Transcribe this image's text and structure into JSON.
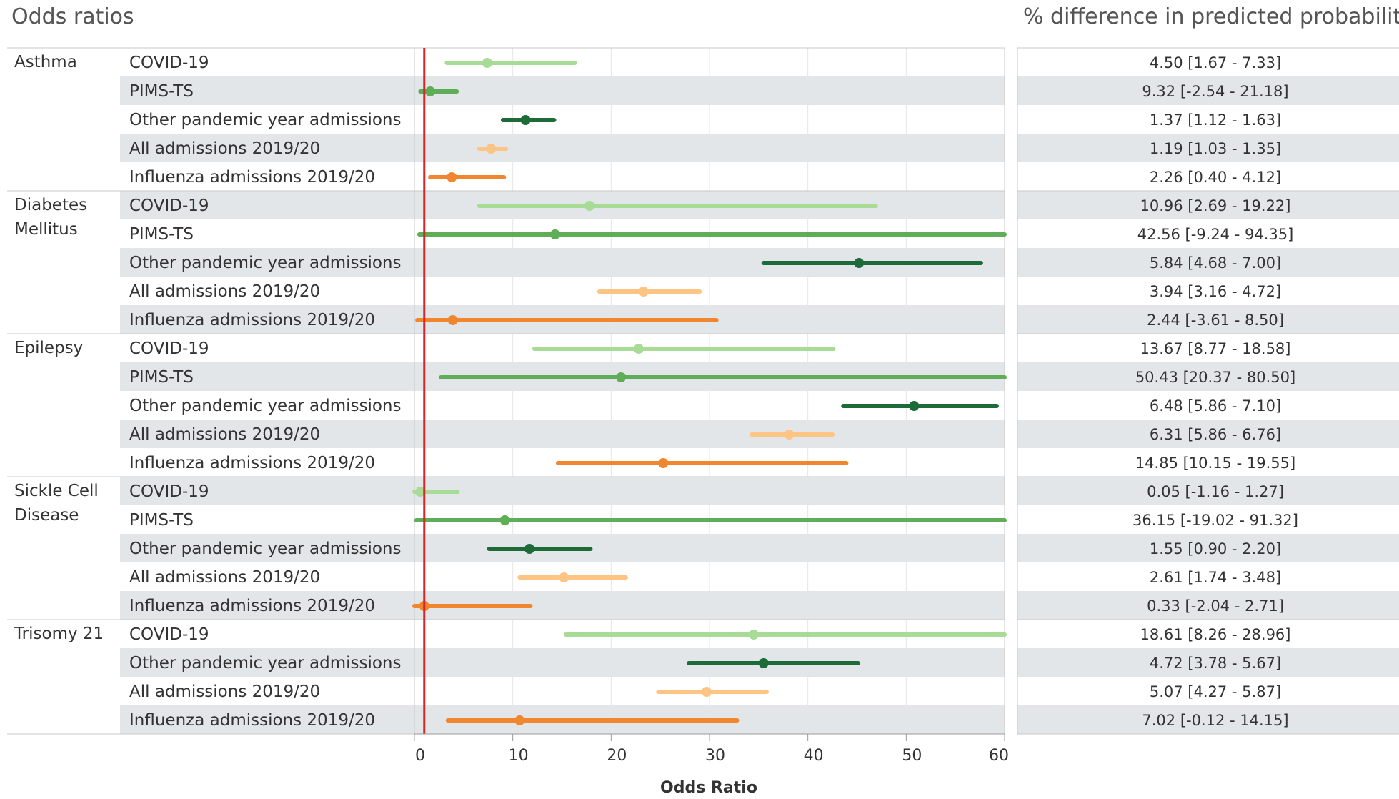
{
  "header_left": "Odds ratios",
  "header_right": "% difference in predicted probability",
  "colors": {
    "COVID-19": "#a8db95",
    "PIMS-TS": "#5fad56",
    "Other pandemic year admissions": "#1e6b3a",
    "All admissions 2019/20": "#fdc483",
    "Influenza admissions 2019/20": "#f0862e",
    "reference_line": "#d62728",
    "band": "#e2e6e9"
  },
  "chart_data": {
    "type": "scatter",
    "subtype": "forest plot with confidence intervals",
    "xlabel": "Odds Ratio",
    "xlim": [
      0,
      60
    ],
    "xticks": [
      0,
      10,
      20,
      30,
      40,
      50,
      60
    ],
    "reference_line_x": 1,
    "grid": true,
    "groups": [
      {
        "name": "Asthma",
        "rows": [
          {
            "label": "COVID-19",
            "or": 7.4,
            "lo": 3.3,
            "hi": 16.3,
            "pct": "4.50 [1.67 - 7.33]"
          },
          {
            "label": "PIMS-TS",
            "or": 1.6,
            "lo": 0.6,
            "hi": 4.3,
            "pct": "9.32 [-2.54 - 21.18]"
          },
          {
            "label": "Other pandemic year admissions",
            "or": 11.3,
            "lo": 9.0,
            "hi": 14.2,
            "pct": "1.37 [1.12 - 1.63]"
          },
          {
            "label": "All admissions 2019/20",
            "or": 7.8,
            "lo": 6.6,
            "hi": 9.3,
            "pct": "1.19 [1.03 - 1.35]"
          },
          {
            "label": "Influenza admissions 2019/20",
            "or": 3.8,
            "lo": 1.6,
            "hi": 9.1,
            "pct": "2.26 [0.40 - 4.12]"
          }
        ]
      },
      {
        "name": "Diabetes Mellitus",
        "rows": [
          {
            "label": "COVID-19",
            "or": 17.8,
            "lo": 6.6,
            "hi": 46.9,
            "pct": "10.96 [2.69 - 19.22]"
          },
          {
            "label": "PIMS-TS",
            "or": 14.3,
            "lo": 0.5,
            "hi": 60,
            "pct": "42.56 [-9.24 - 94.35]"
          },
          {
            "label": "Other pandemic year admissions",
            "or": 45.2,
            "lo": 35.5,
            "hi": 57.6,
            "pct": "5.84 [4.68 - 7.00]"
          },
          {
            "label": "All admissions 2019/20",
            "or": 23.3,
            "lo": 18.8,
            "hi": 29.0,
            "pct": "3.94 [3.16 - 4.72]"
          },
          {
            "label": "Influenza admissions 2019/20",
            "or": 3.9,
            "lo": 0.3,
            "hi": 30.7,
            "pct": "2.44 [-3.61 - 8.50]"
          }
        ]
      },
      {
        "name": "Epilepsy",
        "rows": [
          {
            "label": "COVID-19",
            "or": 22.8,
            "lo": 12.2,
            "hi": 42.6,
            "pct": "13.67 [8.77 - 18.58]"
          },
          {
            "label": "PIMS-TS",
            "or": 21.0,
            "lo": 2.7,
            "hi": 60,
            "pct": "50.43 [20.37 - 80.50]"
          },
          {
            "label": "Other pandemic year admissions",
            "or": 50.8,
            "lo": 43.6,
            "hi": 59.2,
            "pct": "6.48 [5.86 - 7.10]"
          },
          {
            "label": "All admissions 2019/20",
            "or": 38.1,
            "lo": 34.3,
            "hi": 42.5,
            "pct": "6.31 [5.86 - 6.76]"
          },
          {
            "label": "Influenza admissions 2019/20",
            "or": 25.3,
            "lo": 14.6,
            "hi": 43.9,
            "pct": "14.85 [10.15 - 19.55]"
          }
        ]
      },
      {
        "name": "Sickle Cell Disease",
        "rows": [
          {
            "label": "COVID-19",
            "or": 0.6,
            "lo": 0.0,
            "hi": 4.4,
            "pct": "0.05 [-1.16 - 1.27]"
          },
          {
            "label": "PIMS-TS",
            "or": 9.2,
            "lo": 0.2,
            "hi": 60,
            "pct": "36.15 [-19.02 - 91.32]"
          },
          {
            "label": "Other pandemic year admissions",
            "or": 11.7,
            "lo": 7.6,
            "hi": 17.9,
            "pct": "1.55 [0.90 - 2.20]"
          },
          {
            "label": "All admissions 2019/20",
            "or": 15.2,
            "lo": 10.7,
            "hi": 21.5,
            "pct": "2.61 [1.74 - 3.48]"
          },
          {
            "label": "Influenza admissions 2019/20",
            "or": 1.0,
            "lo": 0.0,
            "hi": 11.8,
            "pct": "0.33 [-2.04 - 2.71]"
          }
        ]
      },
      {
        "name": "Trisomy 21",
        "rows": [
          {
            "label": "COVID-19",
            "or": 34.5,
            "lo": 15.4,
            "hi": 60,
            "pct": "18.61 [8.26 - 28.96]"
          },
          {
            "label": "Other pandemic year admissions",
            "or": 35.5,
            "lo": 27.9,
            "hi": 45.1,
            "pct": "4.72 [3.78 - 5.67]"
          },
          {
            "label": "All admissions 2019/20",
            "or": 29.7,
            "lo": 24.8,
            "hi": 35.8,
            "pct": "5.07 [4.27 - 5.87]"
          },
          {
            "label": "Influenza admissions 2019/20",
            "or": 10.7,
            "lo": 3.4,
            "hi": 32.8,
            "pct": "7.02 [-0.12 - 14.15]"
          }
        ]
      }
    ]
  }
}
